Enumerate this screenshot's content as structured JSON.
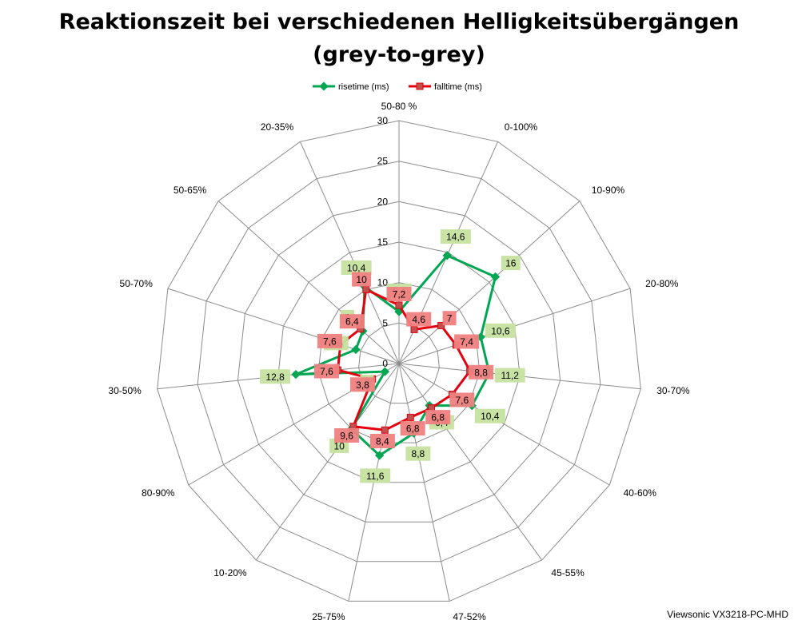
{
  "chart_data": {
    "type": "radar",
    "title": "Reaktionszeit bei verschiedenen Helligkeitsübergängen",
    "subtitle": "(grey-to-grey)",
    "categories": [
      "50-80 %",
      "0-100%",
      "10-90%",
      "20-80%",
      "30-70%",
      "40-60%",
      "45-55%",
      "47-52%",
      "25-75%",
      "10-20%",
      "80-90%",
      "30-50%",
      "50-70%",
      "50-65%",
      "20-35%"
    ],
    "rlim": [
      0,
      30
    ],
    "rticks": [
      0,
      5,
      10,
      15,
      20,
      25,
      30
    ],
    "grid": true,
    "legend_position": "top",
    "series": [
      {
        "name": "risetime (ms)",
        "color": "#00a651",
        "label_bg": "#c6e2a0",
        "values": [
          6.4,
          14.6,
          16,
          10.6,
          11.2,
          10.4,
          6.4,
          8.8,
          11.6,
          10,
          2,
          12.8,
          5.6,
          6,
          10.4
        ],
        "labels": [
          "6,4",
          "14,6",
          "16",
          "10,6",
          "11,2",
          "10,4",
          "6,4",
          "8,8",
          "11,6",
          "10",
          "2",
          "12,8",
          "5,6",
          "6",
          "10,4"
        ]
      },
      {
        "name": "falltime (ms)",
        "color": "#e3000f",
        "label_bg": "#f08080",
        "values": [
          7.2,
          4.6,
          7,
          7.4,
          8.8,
          7.6,
          6.8,
          6.8,
          8.4,
          9.6,
          3.8,
          7.6,
          7.6,
          6.4,
          10
        ],
        "labels": [
          "7,2",
          "4,6",
          "7",
          "7,4",
          "8,8",
          "7,6",
          "6,8",
          "6,8",
          "8,4",
          "9,6",
          "3,8",
          "7,6",
          "7,6",
          "6,4",
          "10"
        ]
      }
    ]
  },
  "footer": {
    "watermark": "Viewsonic VX3218-PC-MHD"
  }
}
